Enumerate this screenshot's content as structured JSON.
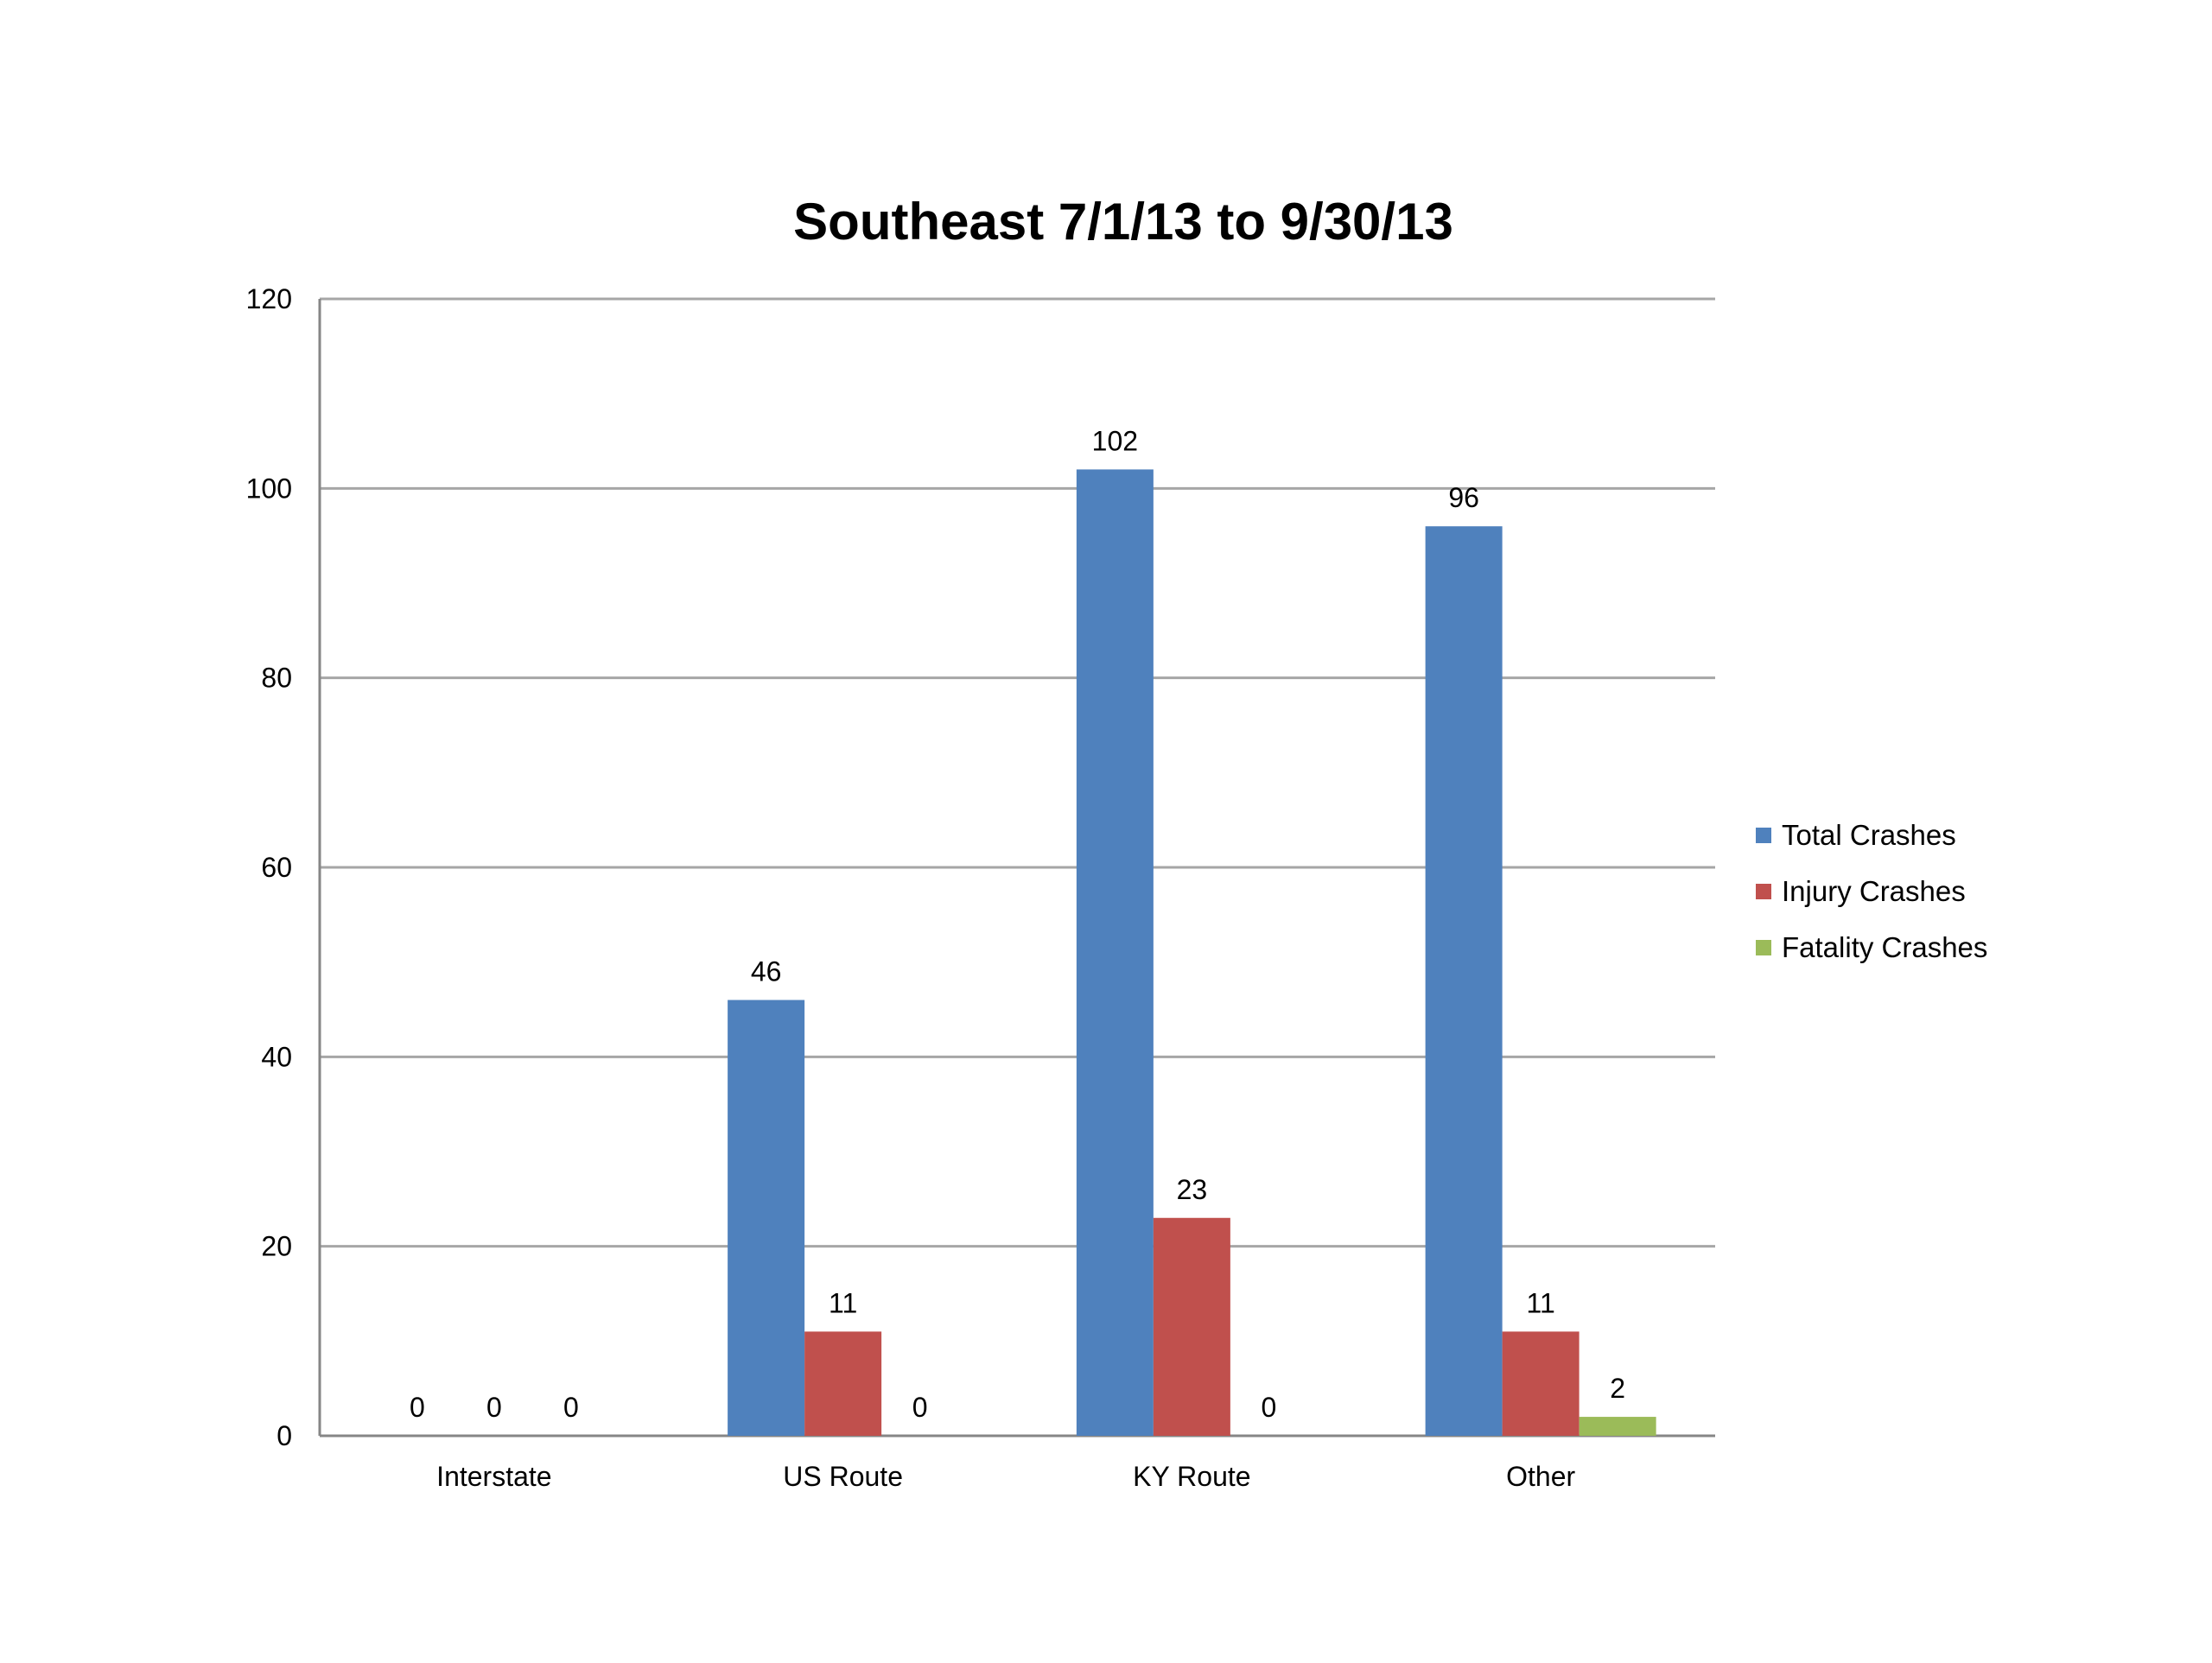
{
  "chart_data": {
    "type": "bar",
    "title": "Southeast 7/1/13 to 9/30/13",
    "xlabel": "",
    "ylabel": "",
    "categories": [
      "Interstate",
      "US Route",
      "KY Route",
      "Other"
    ],
    "series": [
      {
        "name": "Total Crashes",
        "color": "#4F81BD",
        "values": [
          0,
          46,
          102,
          96
        ]
      },
      {
        "name": "Injury Crashes",
        "color": "#C0504D",
        "values": [
          0,
          11,
          23,
          11
        ]
      },
      {
        "name": "Fatality Crashes",
        "color": "#9BBB59",
        "values": [
          0,
          0,
          0,
          2
        ]
      }
    ],
    "ylim": [
      0,
      120
    ],
    "yticks": [
      0,
      20,
      40,
      60,
      80,
      100,
      120
    ],
    "grid": true,
    "legend_position": "right",
    "data_labels": true
  }
}
